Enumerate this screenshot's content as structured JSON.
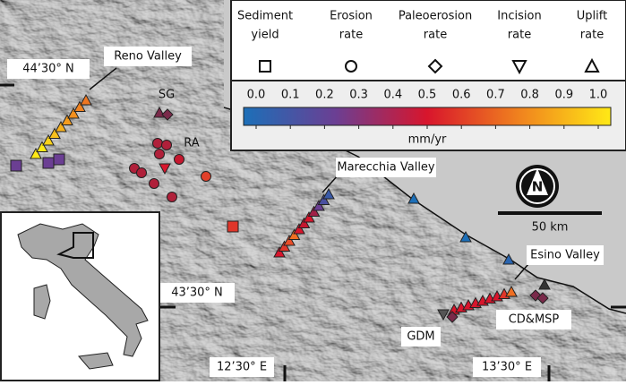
{
  "legend": {
    "items": [
      {
        "lines": [
          "Sediment",
          "yield"
        ]
      },
      {
        "lines": [
          "Erosion",
          "rate"
        ]
      },
      {
        "lines": [
          "Paleoerosion",
          "rate"
        ]
      },
      {
        "lines": [
          "Incision",
          "rate"
        ]
      },
      {
        "lines": [
          "Uplift",
          "rate"
        ]
      }
    ]
  },
  "colorbar": {
    "ticks": [
      {
        "value": 0,
        "label": "0.0"
      },
      0.1,
      0.2,
      0.3,
      0.4,
      0.5,
      0.6,
      0.7,
      0.8,
      0.9,
      {
        "value": 1,
        "label": "1.0"
      }
    ],
    "lim": [
      0,
      1
    ],
    "unit": "mm/yr"
  },
  "places": {
    "reno": "Reno Valley",
    "sg": "SG",
    "ra": "RA",
    "marecchia": "Marecchia Valley",
    "esino": "Esino Valley",
    "gdm": "GDM",
    "cdmsp": "CD&MSP"
  },
  "coordinates": {
    "lat_north": "44’30° N",
    "lat_south": "43’30° N",
    "lon_west": "12’30° E",
    "lon_east": "13’30° E"
  },
  "scale": "50 km",
  "north": "N"
}
